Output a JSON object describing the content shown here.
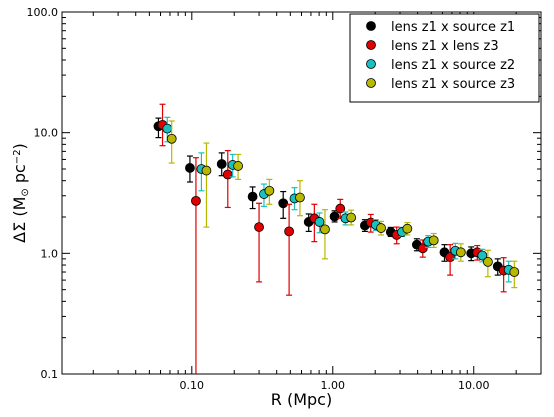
{
  "chart_data": {
    "type": "scatter",
    "xlabel": "R (Mpc)",
    "ylabel_main": "ΔΣ (M",
    "ylabel_sun": "⊙",
    "ylabel_unit": " pc",
    "ylabel_exp": "−2",
    "ylabel_close": ")",
    "xscale": "log",
    "yscale": "log",
    "xlim": [
      0.012,
      30
    ],
    "ylim": [
      0.1,
      100
    ],
    "x_ticks": [
      {
        "value": 0.1,
        "label": "0.10"
      },
      {
        "value": 1,
        "label": "1.00"
      },
      {
        "value": 10,
        "label": "10.00"
      }
    ],
    "y_ticks": [
      {
        "value": 0.1,
        "label": "0.1"
      },
      {
        "value": 1,
        "label": "1.0"
      },
      {
        "value": 10,
        "label": "10.0"
      },
      {
        "value": 100,
        "label": "100.0"
      }
    ],
    "grid": false,
    "legend_position": "top-right",
    "series": [
      {
        "name": "lens z1 x source z1",
        "color": "#000000",
        "points": [
          {
            "x": 0.058,
            "y": 11.3,
            "lo": 9.1,
            "hi": 13.2
          },
          {
            "x": 0.097,
            "y": 5.1,
            "lo": 3.9,
            "hi": 6.4
          },
          {
            "x": 0.163,
            "y": 5.5,
            "lo": 4.4,
            "hi": 6.8
          },
          {
            "x": 0.27,
            "y": 2.95,
            "lo": 2.35,
            "hi": 3.55
          },
          {
            "x": 0.445,
            "y": 2.6,
            "lo": 1.95,
            "hi": 3.25
          },
          {
            "x": 0.675,
            "y": 1.82,
            "lo": 1.52,
            "hi": 2.12
          },
          {
            "x": 1.03,
            "y": 2.02,
            "lo": 1.82,
            "hi": 2.25
          },
          {
            "x": 1.69,
            "y": 1.7,
            "lo": 1.52,
            "hi": 1.9
          },
          {
            "x": 2.58,
            "y": 1.5,
            "lo": 1.38,
            "hi": 1.64
          },
          {
            "x": 3.95,
            "y": 1.18,
            "lo": 1.05,
            "hi": 1.32
          },
          {
            "x": 6.2,
            "y": 1.02,
            "lo": 0.86,
            "hi": 1.18
          },
          {
            "x": 9.6,
            "y": 1.0,
            "lo": 0.87,
            "hi": 1.13
          },
          {
            "x": 14.8,
            "y": 0.78,
            "lo": 0.66,
            "hi": 0.9
          }
        ]
      },
      {
        "name": "lens z1 x lens z3",
        "color": "#e00000",
        "points": [
          {
            "x": 0.062,
            "y": 11.6,
            "lo": 7.8,
            "hi": 17.2
          },
          {
            "x": 0.107,
            "y": 2.72,
            "lo": 0.01,
            "hi": 6.2
          },
          {
            "x": 0.18,
            "y": 4.5,
            "lo": 2.4,
            "hi": 7.1
          },
          {
            "x": 0.3,
            "y": 1.65,
            "lo": 0.58,
            "hi": 2.6
          },
          {
            "x": 0.49,
            "y": 1.52,
            "lo": 0.45,
            "hi": 2.55
          },
          {
            "x": 0.74,
            "y": 1.95,
            "lo": 1.25,
            "hi": 2.55
          },
          {
            "x": 1.13,
            "y": 2.35,
            "lo": 1.95,
            "hi": 2.8
          },
          {
            "x": 1.86,
            "y": 1.8,
            "lo": 1.5,
            "hi": 2.1
          },
          {
            "x": 2.84,
            "y": 1.42,
            "lo": 1.2,
            "hi": 1.65
          },
          {
            "x": 4.35,
            "y": 1.1,
            "lo": 0.93,
            "hi": 1.29
          },
          {
            "x": 6.8,
            "y": 0.93,
            "lo": 0.66,
            "hi": 1.18
          },
          {
            "x": 10.6,
            "y": 1.02,
            "lo": 0.88,
            "hi": 1.16
          },
          {
            "x": 16.3,
            "y": 0.72,
            "lo": 0.48,
            "hi": 0.92
          }
        ]
      },
      {
        "name": "lens z1 x source z2",
        "color": "#19c0c0",
        "points": [
          {
            "x": 0.067,
            "y": 10.8,
            "lo": 8.4,
            "hi": 13.4
          },
          {
            "x": 0.117,
            "y": 5.0,
            "lo": 3.3,
            "hi": 6.8
          },
          {
            "x": 0.195,
            "y": 5.4,
            "lo": 4.3,
            "hi": 6.6
          },
          {
            "x": 0.325,
            "y": 3.1,
            "lo": 2.45,
            "hi": 3.75
          },
          {
            "x": 0.535,
            "y": 2.85,
            "lo": 2.3,
            "hi": 3.5
          },
          {
            "x": 0.805,
            "y": 1.82,
            "lo": 1.48,
            "hi": 2.16
          },
          {
            "x": 1.23,
            "y": 1.95,
            "lo": 1.72,
            "hi": 2.2
          },
          {
            "x": 2.02,
            "y": 1.72,
            "lo": 1.55,
            "hi": 1.9
          },
          {
            "x": 3.1,
            "y": 1.5,
            "lo": 1.38,
            "hi": 1.64
          },
          {
            "x": 4.75,
            "y": 1.25,
            "lo": 1.12,
            "hi": 1.4
          },
          {
            "x": 7.4,
            "y": 1.05,
            "lo": 0.9,
            "hi": 1.21
          },
          {
            "x": 11.5,
            "y": 0.96,
            "lo": 0.85,
            "hi": 1.08
          },
          {
            "x": 17.7,
            "y": 0.73,
            "lo": 0.58,
            "hi": 0.86
          }
        ]
      },
      {
        "name": "lens z1 x source z3",
        "color": "#b8b800",
        "points": [
          {
            "x": 0.072,
            "y": 8.9,
            "lo": 5.6,
            "hi": 12.5
          },
          {
            "x": 0.127,
            "y": 4.85,
            "lo": 1.65,
            "hi": 8.2
          },
          {
            "x": 0.213,
            "y": 5.3,
            "lo": 4.1,
            "hi": 6.6
          },
          {
            "x": 0.355,
            "y": 3.3,
            "lo": 2.55,
            "hi": 4.1
          },
          {
            "x": 0.585,
            "y": 2.9,
            "lo": 2.05,
            "hi": 4.0
          },
          {
            "x": 0.88,
            "y": 1.58,
            "lo": 0.9,
            "hi": 2.3
          },
          {
            "x": 1.35,
            "y": 1.98,
            "lo": 1.72,
            "hi": 2.28
          },
          {
            "x": 2.2,
            "y": 1.62,
            "lo": 1.42,
            "hi": 1.84
          },
          {
            "x": 3.38,
            "y": 1.6,
            "lo": 1.42,
            "hi": 1.8
          },
          {
            "x": 5.2,
            "y": 1.28,
            "lo": 1.12,
            "hi": 1.46
          },
          {
            "x": 8.1,
            "y": 1.02,
            "lo": 0.86,
            "hi": 1.2
          },
          {
            "x": 12.6,
            "y": 0.85,
            "lo": 0.64,
            "hi": 1.06
          },
          {
            "x": 19.4,
            "y": 0.7,
            "lo": 0.52,
            "hi": 0.86
          }
        ]
      }
    ]
  }
}
